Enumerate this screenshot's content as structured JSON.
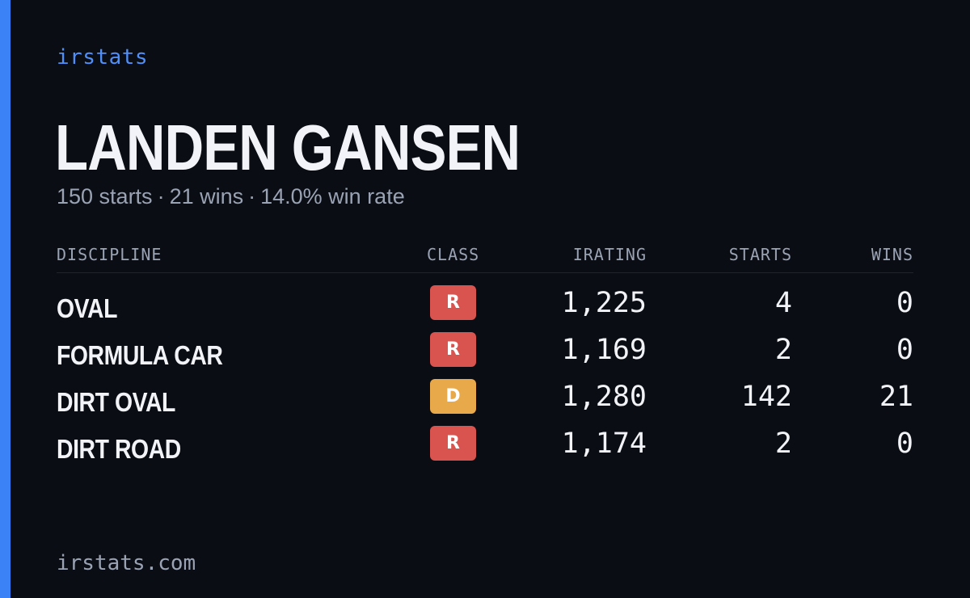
{
  "brand": "irstats",
  "driver": {
    "name": "LANDEN GANSEN",
    "summary": {
      "starts": "150 starts",
      "wins": "21 wins",
      "win_rate": "14.0% win rate",
      "separator": "·"
    }
  },
  "table": {
    "headers": {
      "discipline": "DISCIPLINE",
      "class": "CLASS",
      "irating": "IRATING",
      "starts": "STARTS",
      "wins": "WINS"
    },
    "rows": [
      {
        "discipline": "OVAL",
        "class": "R",
        "class_color": "#d9534f",
        "irating": "1,225",
        "starts": "4",
        "wins": "0"
      },
      {
        "discipline": "FORMULA CAR",
        "class": "R",
        "class_color": "#d9534f",
        "irating": "1,169",
        "starts": "2",
        "wins": "0"
      },
      {
        "discipline": "DIRT OVAL",
        "class": "D",
        "class_color": "#e8a94a",
        "irating": "1,280",
        "starts": "142",
        "wins": "21"
      },
      {
        "discipline": "DIRT ROAD",
        "class": "R",
        "class_color": "#d9534f",
        "irating": "1,174",
        "starts": "2",
        "wins": "0"
      }
    ]
  },
  "footer": "irstats.com",
  "colors": {
    "accent": "#3b82f6",
    "background": "#0b0d14",
    "brand_text": "#4f8ff7"
  }
}
